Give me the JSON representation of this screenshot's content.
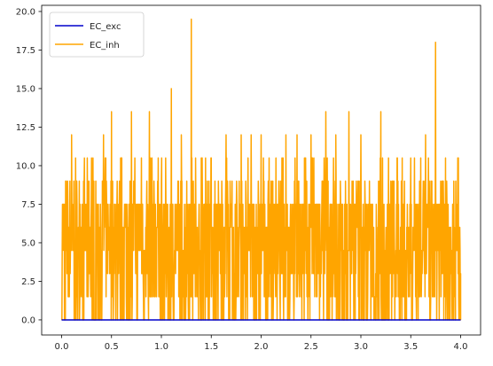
{
  "chart_data": {
    "type": "line",
    "title": "",
    "xlabel": "",
    "ylabel": "",
    "xlim": [
      -0.2,
      4.2
    ],
    "ylim": [
      -0.98,
      20.4
    ],
    "x_ticks": [
      0.0,
      0.5,
      1.0,
      1.5,
      2.0,
      2.5,
      3.0,
      3.5,
      4.0
    ],
    "x_tick_labels": [
      "0.0",
      "0.5",
      "1.0",
      "1.5",
      "2.0",
      "2.5",
      "3.0",
      "3.5",
      "4.0"
    ],
    "y_ticks": [
      0.0,
      2.5,
      5.0,
      7.5,
      10.0,
      12.5,
      15.0,
      17.5,
      20.0
    ],
    "y_tick_labels": [
      "0.0",
      "2.5",
      "5.0",
      "7.5",
      "10.0",
      "12.5",
      "15.0",
      "17.5",
      "20.0"
    ],
    "grid": false,
    "legend_position": "top-left",
    "series": [
      {
        "name": "EC_exc",
        "color": "#0000cc",
        "x": [
          0.0,
          4.0
        ],
        "values": [
          0.0,
          0.0
        ]
      },
      {
        "name": "EC_inh",
        "color": "#ffa500",
        "baseline": 0.0,
        "levels": [
          1.5,
          3.0,
          4.5,
          6.0,
          7.5,
          9.0,
          10.5
        ],
        "x_range": [
          0.0,
          4.0
        ],
        "peaks": [
          {
            "x": 0.04,
            "y": 9.0
          },
          {
            "x": 0.1,
            "y": 12.0
          },
          {
            "x": 0.14,
            "y": 10.5
          },
          {
            "x": 0.3,
            "y": 10.5
          },
          {
            "x": 0.42,
            "y": 12.0
          },
          {
            "x": 0.5,
            "y": 13.5
          },
          {
            "x": 0.6,
            "y": 10.5
          },
          {
            "x": 0.7,
            "y": 13.5
          },
          {
            "x": 0.8,
            "y": 10.5
          },
          {
            "x": 0.88,
            "y": 13.5
          },
          {
            "x": 0.97,
            "y": 10.5
          },
          {
            "x": 1.1,
            "y": 15.0
          },
          {
            "x": 1.2,
            "y": 12.0
          },
          {
            "x": 1.3,
            "y": 19.5
          },
          {
            "x": 1.4,
            "y": 10.5
          },
          {
            "x": 1.5,
            "y": 10.5
          },
          {
            "x": 1.65,
            "y": 12.0
          },
          {
            "x": 1.8,
            "y": 12.0
          },
          {
            "x": 1.9,
            "y": 12.0
          },
          {
            "x": 2.0,
            "y": 12.0
          },
          {
            "x": 2.25,
            "y": 12.0
          },
          {
            "x": 2.36,
            "y": 12.0
          },
          {
            "x": 2.5,
            "y": 12.0
          },
          {
            "x": 2.65,
            "y": 13.5
          },
          {
            "x": 2.75,
            "y": 12.0
          },
          {
            "x": 2.88,
            "y": 13.5
          },
          {
            "x": 3.0,
            "y": 12.0
          },
          {
            "x": 3.2,
            "y": 13.5
          },
          {
            "x": 3.5,
            "y": 10.5
          },
          {
            "x": 3.65,
            "y": 12.0
          },
          {
            "x": 3.75,
            "y": 18.0
          },
          {
            "x": 3.85,
            "y": 10.5
          },
          {
            "x": 3.95,
            "y": 9.0
          }
        ]
      }
    ]
  }
}
